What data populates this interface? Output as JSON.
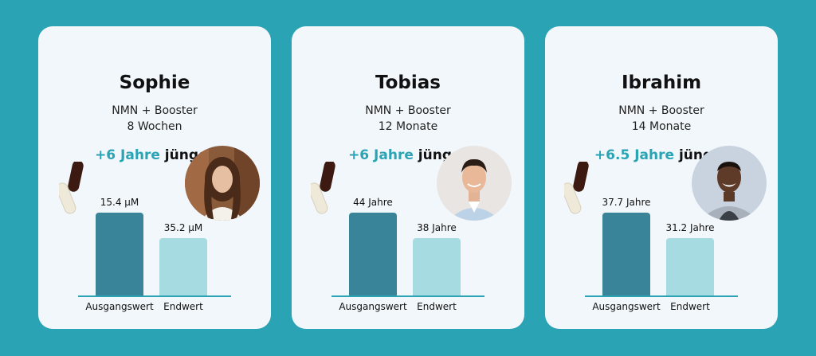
{
  "colors": {
    "background": "#2aa3b4",
    "card": "#f1f7fb",
    "highlight": "#2aa3b4",
    "bar_baseline": "#3a8499",
    "bar_end": "#a7dbe2"
  },
  "icons": [
    "capsules-icon",
    "avatar-photo"
  ],
  "cards": [
    {
      "name": "Sophie",
      "supplement": "NMN + Booster",
      "duration": "8 Wochen",
      "result_highlight": "+6 Jahre",
      "result_suffix": "jünger",
      "baseline_label": "15.4 µM",
      "end_label": "35.2 µM",
      "axis_baseline": "Ausgangswert",
      "axis_end": "Endwert",
      "baseline_level": 1.0,
      "end_level": 0.69
    },
    {
      "name": "Tobias",
      "supplement": "NMN + Booster",
      "duration": "12 Monate",
      "result_highlight": "+6 Jahre",
      "result_suffix": "jünger",
      "baseline_label": "44 Jahre",
      "end_label": "38 Jahre",
      "axis_baseline": "Ausgangswert",
      "axis_end": "Endwert",
      "baseline_level": 1.0,
      "end_level": 0.69
    },
    {
      "name": "Ibrahim",
      "supplement": "NMN + Booster",
      "duration": "14 Monate",
      "result_highlight": "+6.5 Jahre",
      "result_suffix": "jünger",
      "baseline_label": "37.7 Jahre",
      "end_label": "31.2 Jahre",
      "axis_baseline": "Ausgangswert",
      "axis_end": "Endwert",
      "baseline_level": 1.0,
      "end_level": 0.69
    }
  ]
}
